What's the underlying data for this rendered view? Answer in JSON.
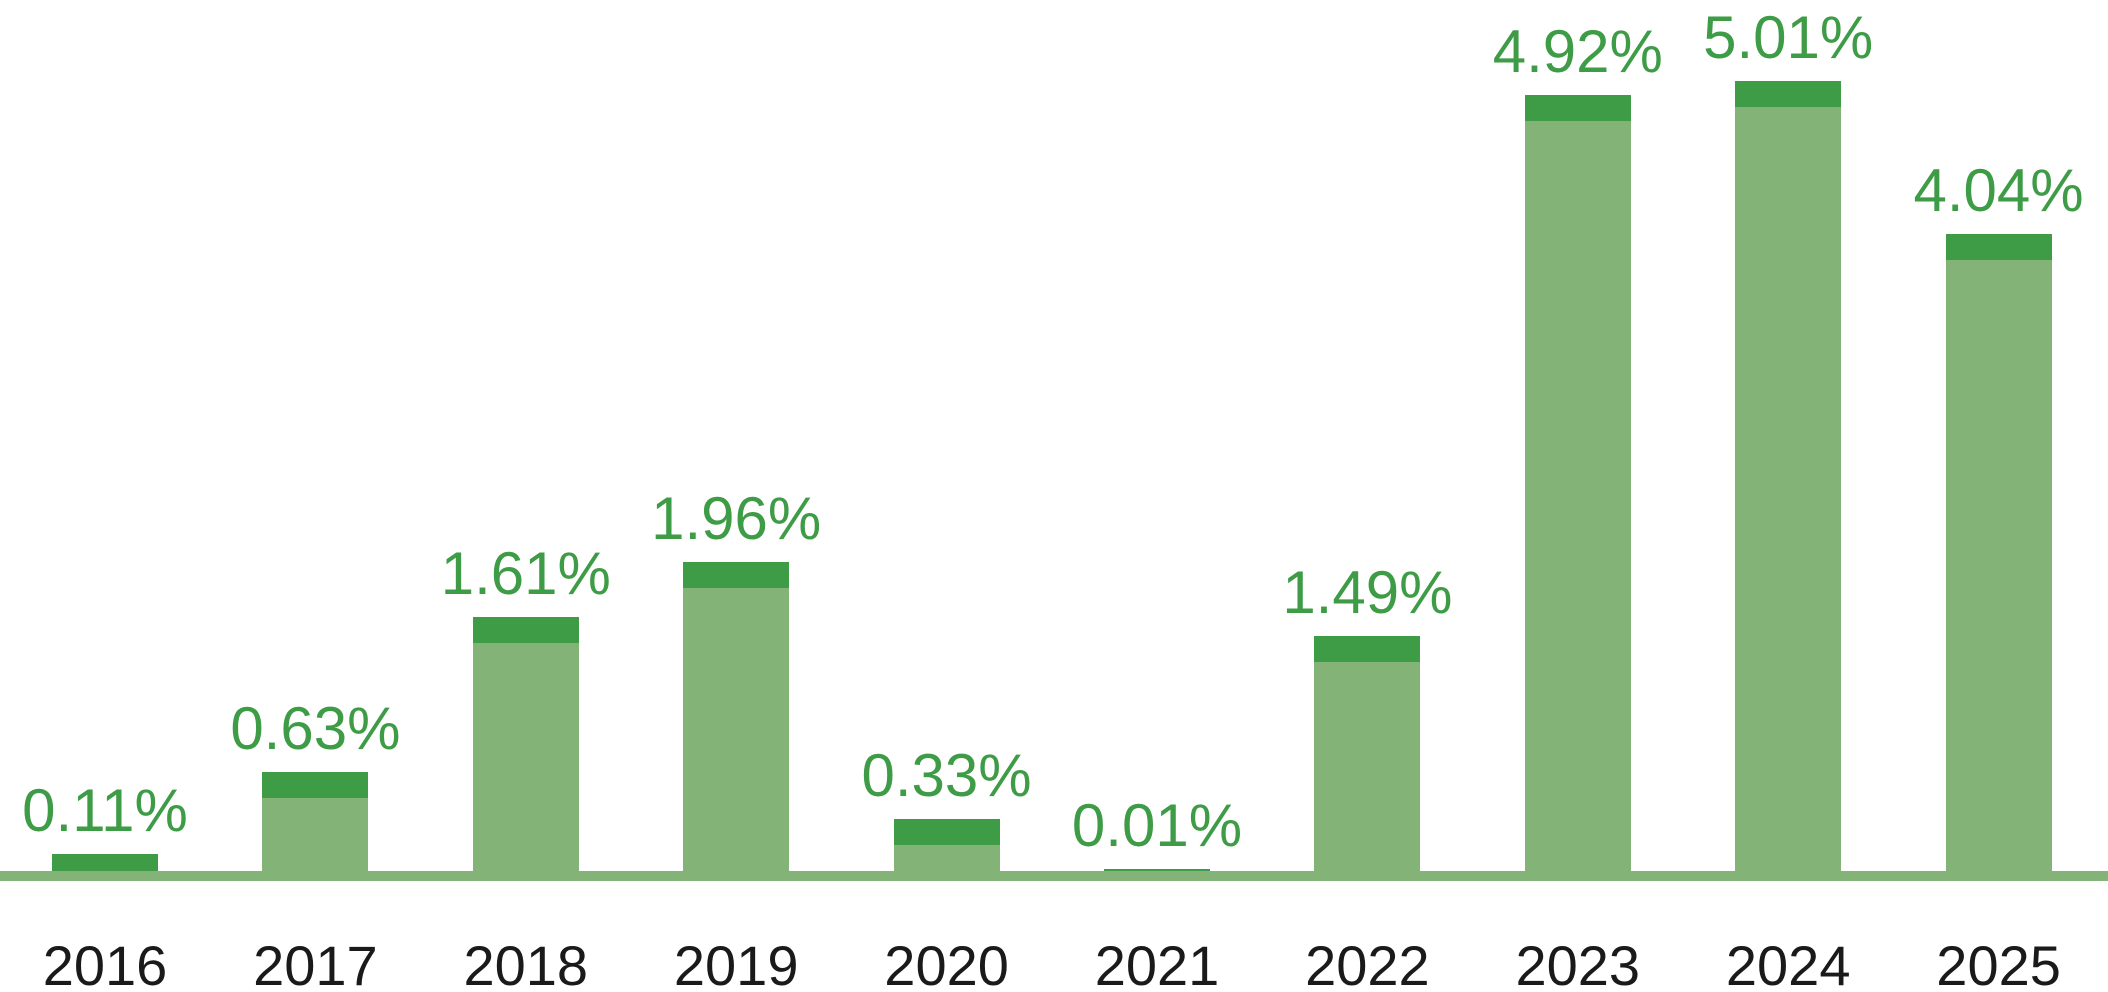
{
  "chart_data": {
    "type": "bar",
    "title": "",
    "xlabel": "",
    "ylabel": "",
    "categories": [
      "2016",
      "2017",
      "2018",
      "2019",
      "2020",
      "2021",
      "2022",
      "2023",
      "2024",
      "2025"
    ],
    "values": [
      0.11,
      0.63,
      1.61,
      1.96,
      0.33,
      0.01,
      1.49,
      4.92,
      5.01,
      4.04
    ],
    "value_labels": [
      "0.11%",
      "0.63%",
      "1.61%",
      "1.96%",
      "0.33%",
      "0.01%",
      "1.49%",
      "4.92%",
      "5.01%",
      "4.04%"
    ],
    "ylim": [
      0,
      5.5
    ],
    "grid": false,
    "legend": "none",
    "y_axis_visible": false,
    "x_axis_line": true,
    "colors": {
      "bar_body": "#84B377",
      "bar_cap": "#3E9B46",
      "value_label": "#3E9B46",
      "year_label": "#1A1A1A",
      "axis_line": "#84B377"
    }
  }
}
